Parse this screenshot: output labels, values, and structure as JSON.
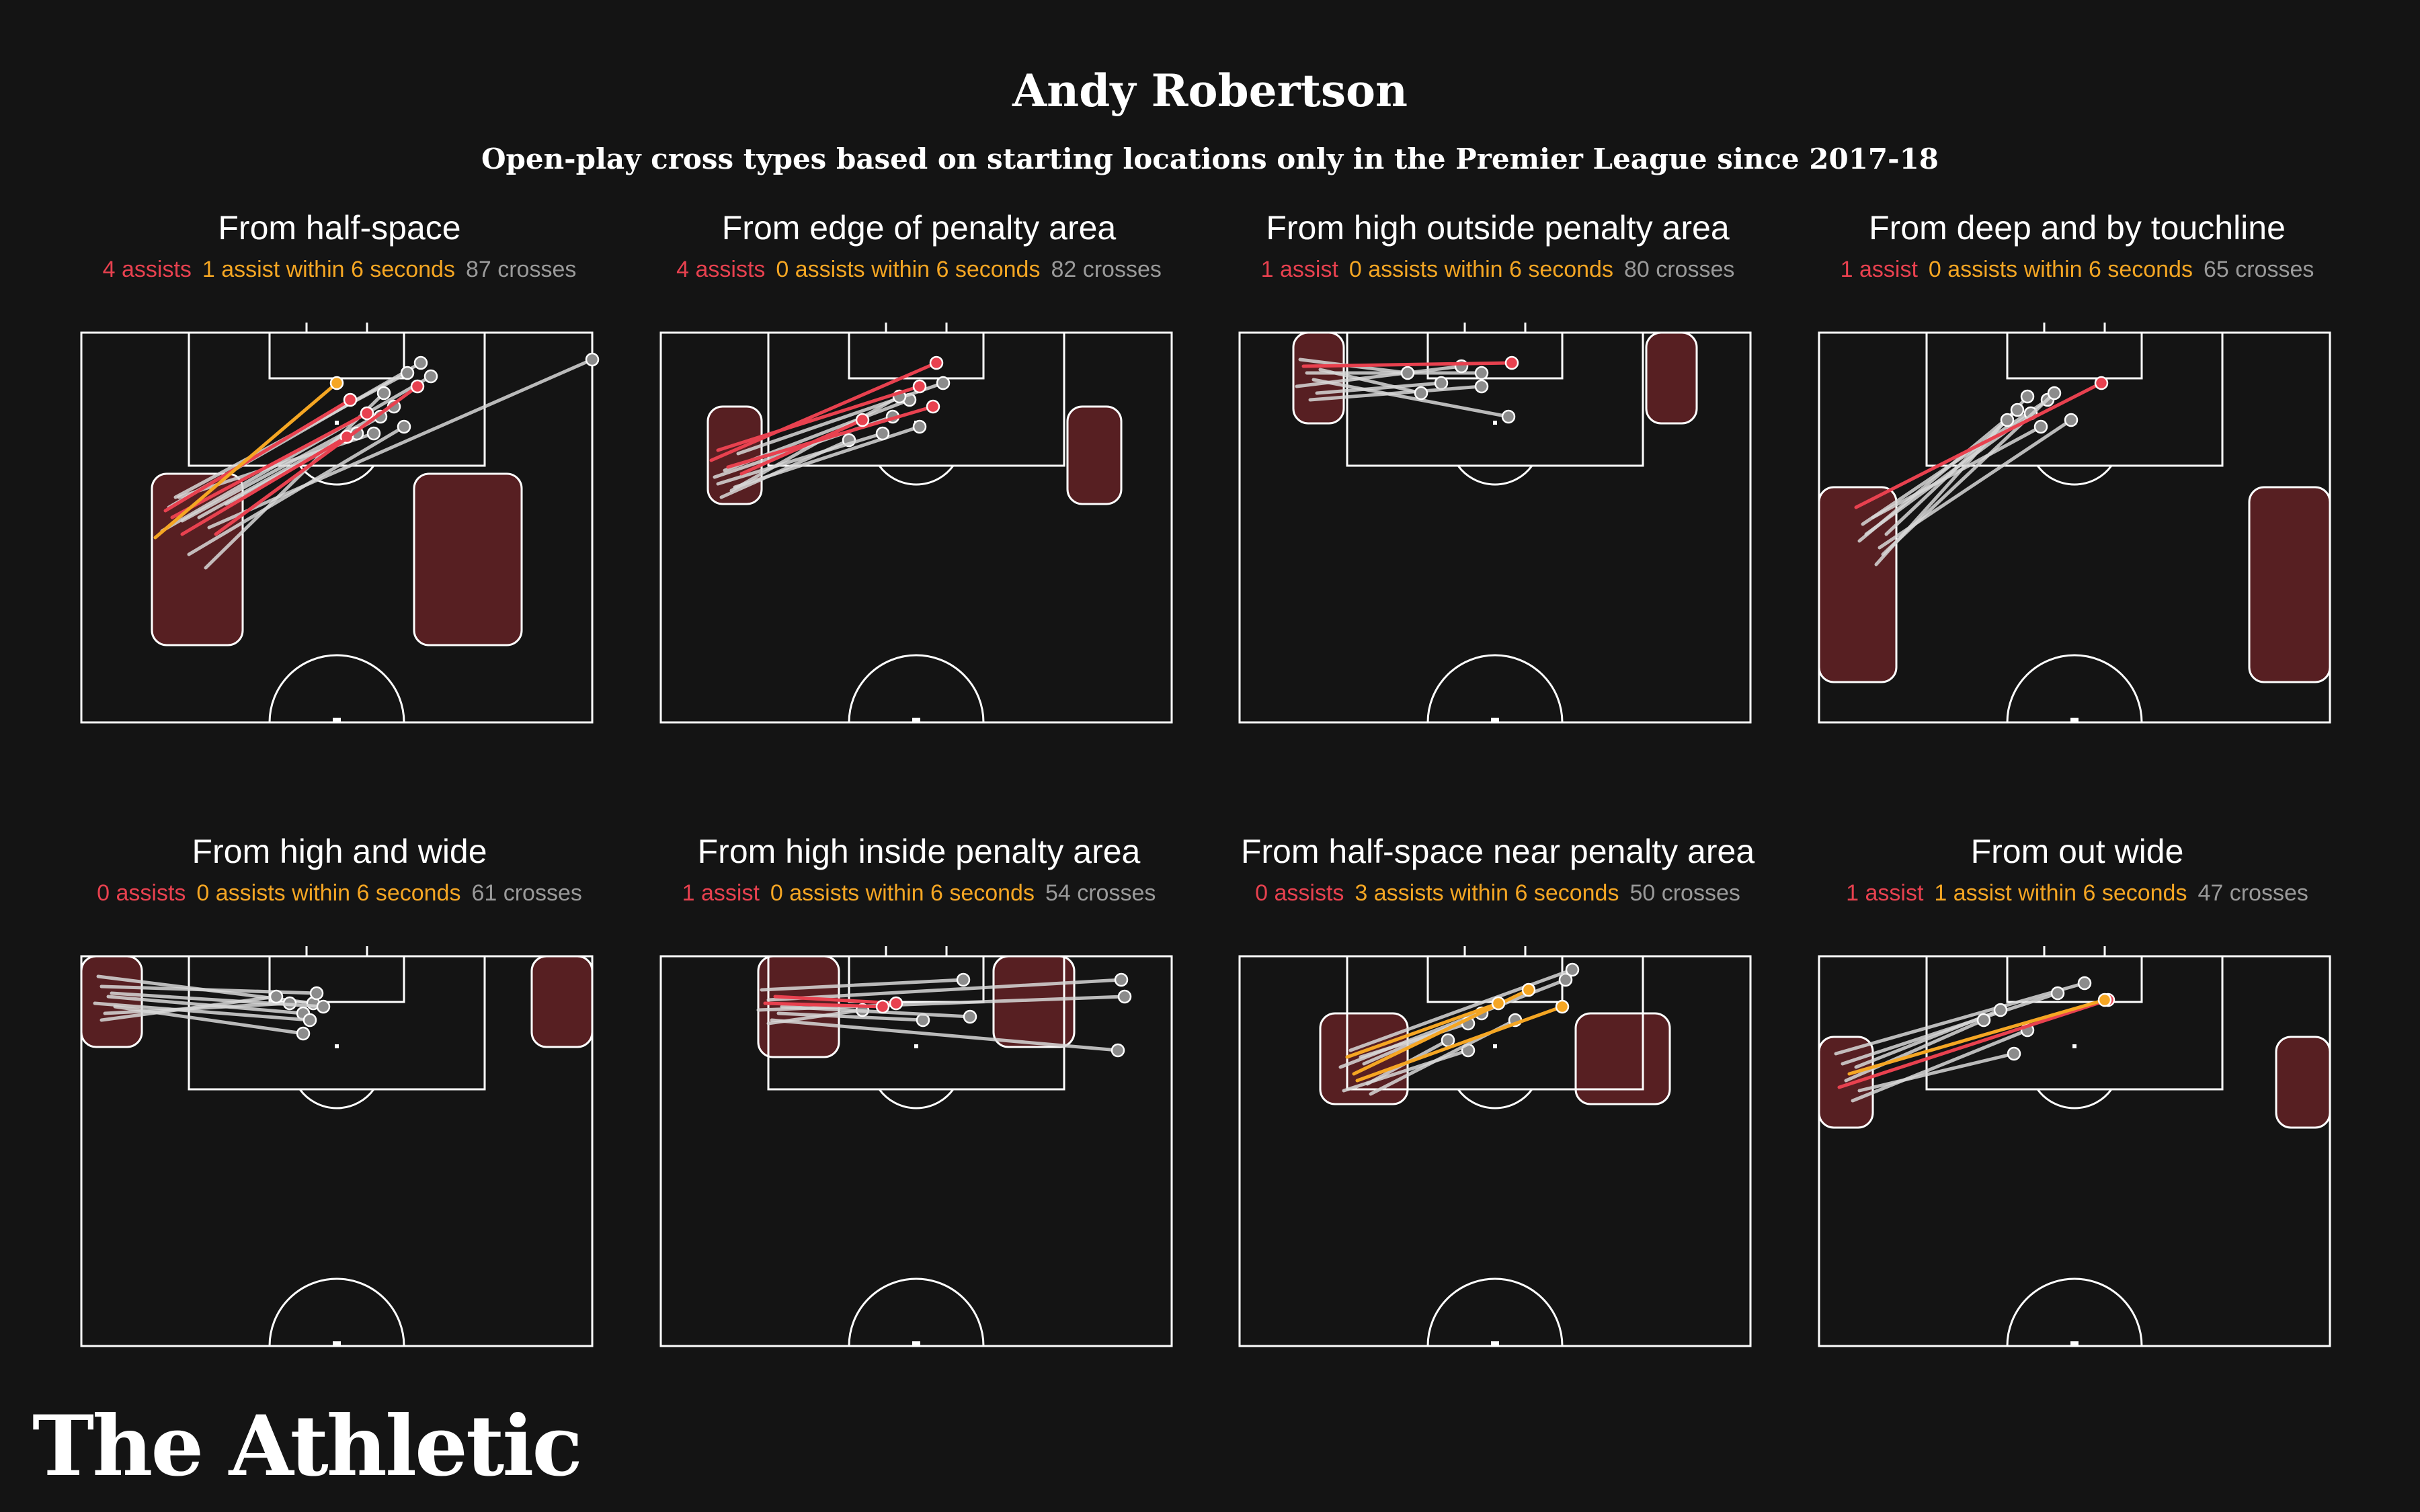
{
  "header": {
    "title": "Andy Robertson",
    "subtitle": "Open-play cross types based on starting locations only in the Premier League since 2017-18"
  },
  "brand": {
    "name": "The Athletic"
  },
  "colors": {
    "background": "#141414",
    "zone": "#571f22",
    "assist": "#e8414f",
    "six_seconds": "#f5a623",
    "cross": "#d8d8d8",
    "endpoint": "#8c8c8c"
  },
  "panels": [
    {
      "title": "From half-space",
      "assists": "4 assists",
      "six": "1 assist within 6 seconds",
      "crosses": "87 crosses"
    },
    {
      "title": "From edge of penalty area",
      "assists": "4 assists",
      "six": "0 assists within 6 seconds",
      "crosses": "82 crosses"
    },
    {
      "title": "From high outside penalty area",
      "assists": "1 assist",
      "six": "0 assists within 6 seconds",
      "crosses": "80 crosses"
    },
    {
      "title": "From deep and by touchline",
      "assists": "1 assist",
      "six": "0 assists within 6 seconds",
      "crosses": "65 crosses"
    },
    {
      "title": "From high and wide",
      "assists": "0 assists",
      "six": "0 assists within 6 seconds",
      "crosses": "61 crosses"
    },
    {
      "title": "From high inside penalty area",
      "assists": "1 assist",
      "six": "0 assists within 6 seconds",
      "crosses": "54 crosses"
    },
    {
      "title": "From half-space near penalty area",
      "assists": "0 assists",
      "six": "3 assists within 6 seconds",
      "crosses": "50 crosses"
    },
    {
      "title": "From out wide",
      "assists": "1 assist",
      "six": "1 assist within 6 seconds",
      "crosses": "47 crosses"
    }
  ]
}
